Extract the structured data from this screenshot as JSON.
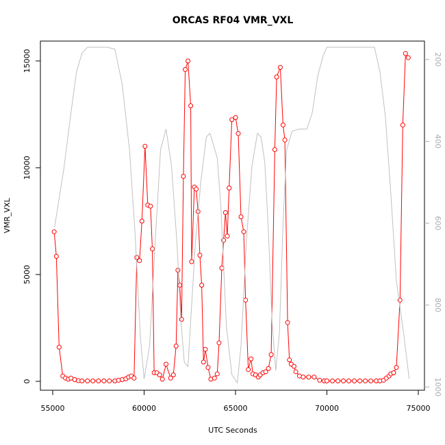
{
  "chart_data": {
    "type": "line",
    "title": "ORCAS RF04 VMR_VXL",
    "x_label": "UTC Seconds",
    "y_label": "VMR_VXL",
    "xlim": [
      54326,
      75337
    ],
    "xticks": [
      55000,
      60000,
      65000,
      70000,
      75000
    ],
    "ylim": [
      -417,
      15929
    ],
    "yticks": [
      0,
      5000,
      10000,
      15000
    ],
    "y2lim": [
      1008,
      155
    ],
    "y2ticks": [
      200,
      400,
      600,
      800,
      1000
    ],
    "series": [
      {
        "color": "#ff0000",
        "markers": true,
        "x": [
          55080,
          55200,
          55350,
          55550,
          55700,
          55850,
          56000,
          56200,
          56400,
          56600,
          56900,
          57200,
          57500,
          57800,
          58100,
          58400,
          58600,
          58800,
          59000,
          59150,
          59300,
          59450,
          59600,
          59750,
          59880,
          60050,
          60200,
          60350,
          60450,
          60550,
          60700,
          60850,
          61000,
          61200,
          61450,
          61600,
          61750,
          61850,
          61950,
          62050,
          62150,
          62250,
          62400,
          62550,
          62600,
          62750,
          62850,
          62950,
          63050,
          63150,
          63250,
          63350,
          63500,
          63650,
          63850,
          64000,
          64100,
          64250,
          64350,
          64450,
          64550,
          64650,
          64800,
          65000,
          65150,
          65300,
          65450,
          65550,
          65700,
          65850,
          65950,
          66100,
          66250,
          66350,
          66500,
          66650,
          66800,
          66950,
          67150,
          67250,
          67450,
          67600,
          67700,
          67850,
          67950,
          68050,
          68200,
          68300,
          68500,
          68700,
          69000,
          69300,
          69600,
          69850,
          70000,
          70300,
          70600,
          70900,
          71200,
          71500,
          71800,
          72100,
          72400,
          72700,
          72900,
          73100,
          73250,
          73400,
          73500,
          73650,
          73800,
          74000,
          74150,
          74300,
          74450
        ],
        "values": [
          7000,
          5850,
          1600,
          250,
          150,
          100,
          150,
          80,
          30,
          20,
          20,
          20,
          20,
          20,
          20,
          20,
          50,
          80,
          120,
          200,
          250,
          150,
          5800,
          5650,
          7500,
          11000,
          8250,
          8200,
          6200,
          400,
          400,
          300,
          100,
          800,
          150,
          300,
          1650,
          5200,
          4500,
          2900,
          9600,
          14600,
          15000,
          12900,
          5600,
          9100,
          9000,
          7950,
          5900,
          4500,
          900,
          1500,
          650,
          100,
          150,
          350,
          1800,
          5300,
          6600,
          7900,
          6800,
          9050,
          12250,
          12350,
          11600,
          7700,
          7000,
          3800,
          550,
          1050,
          350,
          300,
          200,
          300,
          400,
          450,
          600,
          1250,
          10850,
          14250,
          14700,
          12000,
          11300,
          2750,
          1000,
          800,
          700,
          450,
          250,
          200,
          200,
          200,
          50,
          20,
          20,
          20,
          20,
          20,
          20,
          20,
          20,
          20,
          20,
          20,
          20,
          50,
          150,
          250,
          350,
          400,
          650,
          3800,
          12000,
          15350,
          15150
        ]
      },
      {
        "color": "#c0c0c0",
        "axis": "y2",
        "markers": false,
        "x": [
          55100,
          55600,
          56000,
          56300,
          56600,
          56900,
          58000,
          58400,
          58800,
          59200,
          59500,
          59800,
          60000,
          60300,
          60600,
          60900,
          61200,
          61500,
          61800,
          62000,
          62200,
          62400,
          62600,
          62800,
          63100,
          63400,
          63600,
          63800,
          64000,
          64200,
          64500,
          64800,
          65100,
          65300,
          65600,
          65900,
          66200,
          66400,
          66600,
          66800,
          67000,
          67200,
          67400,
          67600,
          67800,
          68100,
          68500,
          68900,
          69200,
          69500,
          69800,
          70000,
          71000,
          72000,
          72600,
          72900,
          73200,
          73500,
          73800,
          74200,
          74500
        ],
        "values": [
          610,
          470,
          330,
          230,
          185,
          170,
          170,
          175,
          260,
          420,
          620,
          880,
          980,
          900,
          650,
          420,
          370,
          460,
          650,
          830,
          940,
          950,
          800,
          650,
          500,
          390,
          380,
          410,
          440,
          560,
          850,
          970,
          990,
          900,
          640,
          460,
          380,
          390,
          450,
          620,
          840,
          960,
          870,
          600,
          420,
          375,
          370,
          370,
          330,
          240,
          190,
          170,
          170,
          170,
          170,
          230,
          340,
          530,
          740,
          870,
          980
        ]
      }
    ]
  }
}
